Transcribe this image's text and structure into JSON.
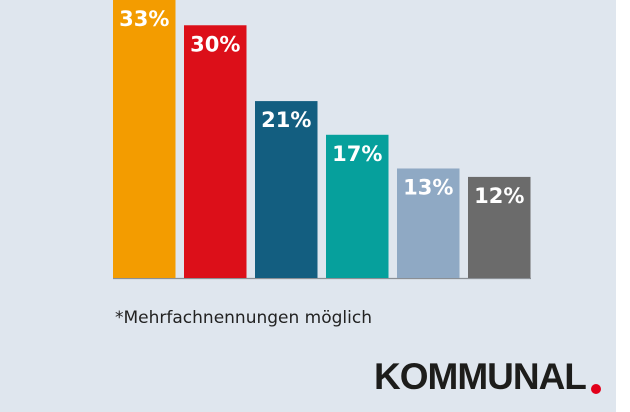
{
  "chart_data": {
    "type": "bar",
    "values": [
      33,
      30,
      21,
      17,
      13,
      12
    ],
    "value_labels": [
      "33%",
      "30%",
      "21%",
      "17%",
      "13%",
      "12%"
    ],
    "colors": [
      "#f39c00",
      "#dc0f19",
      "#135e80",
      "#06a09c",
      "#8fa9c4",
      "#6b6b6b"
    ]
  },
  "footnote": "*Mehrfachnennungen möglich",
  "logo": "KOMMUNAL"
}
